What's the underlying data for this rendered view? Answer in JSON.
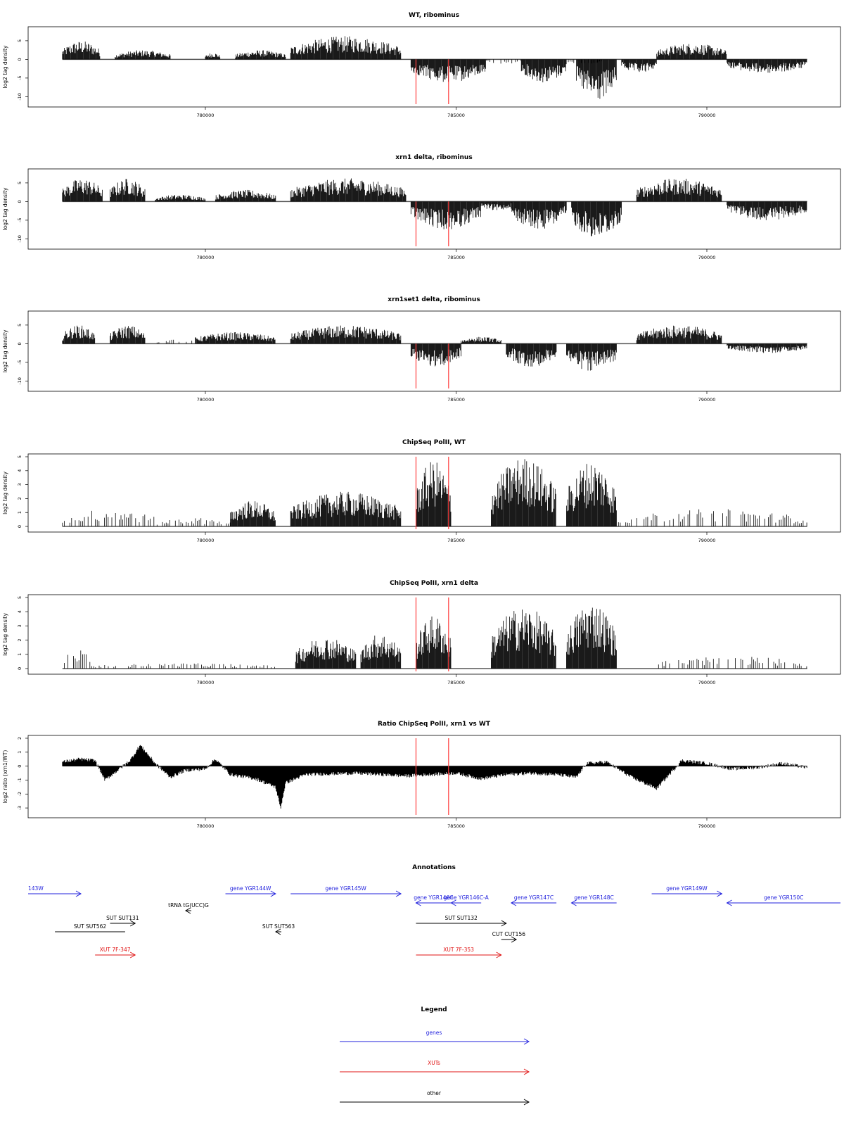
{
  "colors": {
    "gene": "#2222dd",
    "xut": "#e01414",
    "other": "#000000",
    "marker": "#ff3c3c",
    "bars": "#000000"
  },
  "x_range": [
    777000,
    792300
  ],
  "marker_positions": [
    784200,
    784850
  ],
  "panels": [
    {
      "title": "WT, ribominus",
      "ylabel": "log2 tag density",
      "yticks": [
        "5",
        "0",
        "-5",
        "-10"
      ],
      "chart_data": {
        "type": "bar",
        "xlim": [
          777000,
          792300
        ],
        "ylim": [
          -12,
          8
        ],
        "xticks": [
          780000,
          785000,
          790000
        ],
        "xtick_labels": [
          "780000",
          "785000",
          "790000"
        ],
        "segments": [
          {
            "x": [
              777150,
              777900
            ],
            "y": 4,
            "sign": "+"
          },
          {
            "x": [
              778200,
              779300
            ],
            "y": 2,
            "sign": "+"
          },
          {
            "x": [
              780000,
              780300
            ],
            "y": 1.5,
            "sign": "+"
          },
          {
            "x": [
              780600,
              781600
            ],
            "y": 2,
            "sign": "+"
          },
          {
            "x": [
              781700,
              783900
            ],
            "y": 5,
            "sign": "+"
          },
          {
            "x": [
              784100,
              785600
            ],
            "y": -5,
            "sign": "-"
          },
          {
            "x": [
              785600,
              786300
            ],
            "y": -1,
            "sign": "-"
          },
          {
            "x": [
              786300,
              787200
            ],
            "y": -5,
            "sign": "-"
          },
          {
            "x": [
              787200,
              787900
            ],
            "y": -1,
            "sign": "-"
          },
          {
            "x": [
              787400,
              788200
            ],
            "y": -9,
            "sign": "-"
          },
          {
            "x": [
              788300,
              789000
            ],
            "y": -3,
            "sign": "-"
          },
          {
            "x": [
              789000,
              790400
            ],
            "y": 3.5,
            "sign": "+"
          },
          {
            "x": [
              790400,
              792000
            ],
            "y": -3,
            "sign": "-"
          }
        ]
      }
    },
    {
      "title": "xrn1 delta, ribominus",
      "ylabel": "log2 tag density",
      "yticks": [
        "5",
        "0",
        "-5",
        "-10"
      ],
      "chart_data": {
        "type": "bar",
        "xlim": [
          777000,
          792300
        ],
        "ylim": [
          -12,
          8
        ],
        "xticks": [
          780000,
          785000,
          790000
        ],
        "xtick_labels": [
          "780000",
          "785000",
          "790000"
        ],
        "segments": [
          {
            "x": [
              777150,
              777950
            ],
            "y": 5,
            "sign": "+"
          },
          {
            "x": [
              778100,
              778800
            ],
            "y": 5,
            "sign": "+"
          },
          {
            "x": [
              779000,
              780000
            ],
            "y": 1.5,
            "sign": "+"
          },
          {
            "x": [
              780200,
              781400
            ],
            "y": 2.5,
            "sign": "+"
          },
          {
            "x": [
              781700,
              784000
            ],
            "y": 5,
            "sign": "+"
          },
          {
            "x": [
              784100,
              785500
            ],
            "y": -6,
            "sign": "-"
          },
          {
            "x": [
              785500,
              786100
            ],
            "y": -2,
            "sign": "-"
          },
          {
            "x": [
              786100,
              787200
            ],
            "y": -6,
            "sign": "-"
          },
          {
            "x": [
              787300,
              788300
            ],
            "y": -8,
            "sign": "-"
          },
          {
            "x": [
              788600,
              790300
            ],
            "y": 5,
            "sign": "+"
          },
          {
            "x": [
              790400,
              792000
            ],
            "y": -4,
            "sign": "-"
          }
        ]
      }
    },
    {
      "title": "xrn1set1 delta, ribominus",
      "ylabel": "log2 tag density",
      "yticks": [
        "5",
        "0",
        "-5",
        "-10"
      ],
      "chart_data": {
        "type": "bar",
        "xlim": [
          777000,
          792300
        ],
        "ylim": [
          -12,
          8
        ],
        "xticks": [
          780000,
          785000,
          790000
        ],
        "xtick_labels": [
          "780000",
          "785000",
          "790000"
        ],
        "segments": [
          {
            "x": [
              777150,
              777800
            ],
            "y": 4,
            "sign": "+"
          },
          {
            "x": [
              778100,
              778800
            ],
            "y": 4,
            "sign": "+"
          },
          {
            "x": [
              779000,
              779800
            ],
            "y": 1,
            "sign": "+"
          },
          {
            "x": [
              779800,
              781400
            ],
            "y": 2.5,
            "sign": "+"
          },
          {
            "x": [
              781700,
              783900
            ],
            "y": 4,
            "sign": "+"
          },
          {
            "x": [
              784100,
              785100
            ],
            "y": -5,
            "sign": "-"
          },
          {
            "x": [
              785100,
              785900
            ],
            "y": 1.5,
            "sign": "+"
          },
          {
            "x": [
              786000,
              787000
            ],
            "y": -5,
            "sign": "-"
          },
          {
            "x": [
              787200,
              788200
            ],
            "y": -6,
            "sign": "-"
          },
          {
            "x": [
              788600,
              790300
            ],
            "y": 4,
            "sign": "+"
          },
          {
            "x": [
              790400,
              792000
            ],
            "y": -2,
            "sign": "-"
          }
        ]
      }
    },
    {
      "title": "ChipSeq PolII, WT",
      "ylabel": "log2 tag density",
      "yticks": [
        "5",
        "4",
        "3",
        "2",
        "1",
        "0"
      ],
      "chart_data": {
        "type": "bar",
        "xlim": [
          777000,
          792300
        ],
        "ylim": [
          -0.2,
          5
        ],
        "xticks": [
          780000,
          785000,
          790000
        ],
        "xtick_labels": [
          "780000",
          "785000",
          "790000"
        ],
        "segments": [
          {
            "x": [
              777150,
              779000
            ],
            "y": 1,
            "sign": "+"
          },
          {
            "x": [
              779000,
              780500
            ],
            "y": 0.5,
            "sign": "+"
          },
          {
            "x": [
              780500,
              781400
            ],
            "y": 1.5,
            "sign": "+"
          },
          {
            "x": [
              781700,
              783900
            ],
            "y": 2,
            "sign": "+"
          },
          {
            "x": [
              784200,
              784900
            ],
            "y": 3.8,
            "sign": "+"
          },
          {
            "x": [
              785700,
              787000
            ],
            "y": 4,
            "sign": "+"
          },
          {
            "x": [
              787200,
              788200
            ],
            "y": 3.8,
            "sign": "+"
          },
          {
            "x": [
              788200,
              792000
            ],
            "y": 1,
            "sign": "+"
          }
        ]
      }
    },
    {
      "title": "ChipSeq PolII, xrn1 delta",
      "ylabel": "log2 tag density",
      "yticks": [
        "5",
        "4",
        "3",
        "2",
        "1",
        "0"
      ],
      "chart_data": {
        "type": "bar",
        "xlim": [
          777000,
          792300
        ],
        "ylim": [
          -0.2,
          5
        ],
        "xticks": [
          780000,
          785000,
          790000
        ],
        "xtick_labels": [
          "780000",
          "785000",
          "790000"
        ],
        "segments": [
          {
            "x": [
              777150,
              777700
            ],
            "y": 1.2,
            "sign": "+"
          },
          {
            "x": [
              777700,
              781400
            ],
            "y": 0.3,
            "sign": "+"
          },
          {
            "x": [
              781800,
              783000
            ],
            "y": 1.8,
            "sign": "+"
          },
          {
            "x": [
              783100,
              783900
            ],
            "y": 2,
            "sign": "+"
          },
          {
            "x": [
              784200,
              784900
            ],
            "y": 3,
            "sign": "+"
          },
          {
            "x": [
              785700,
              787000
            ],
            "y": 3.5,
            "sign": "+"
          },
          {
            "x": [
              787200,
              788200
            ],
            "y": 3.8,
            "sign": "+"
          },
          {
            "x": [
              789000,
              792000
            ],
            "y": 0.7,
            "sign": "+"
          }
        ]
      }
    },
    {
      "title": "Ratio ChipSeq PolII, xrn1 vs WT",
      "ylabel": "log2 ratio (xrn1/WT)",
      "yticks": [
        "2",
        "1",
        "0",
        "-1",
        "-2",
        "-3"
      ],
      "chart_data": {
        "type": "area",
        "xlim": [
          777000,
          792300
        ],
        "ylim": [
          -3.5,
          2
        ],
        "xticks": [
          780000,
          785000,
          790000
        ],
        "xtick_labels": [
          "780000",
          "785000",
          "790000"
        ],
        "x": [
          777150,
          777500,
          777800,
          778000,
          778500,
          778700,
          779000,
          779300,
          779600,
          780000,
          780200,
          780500,
          781000,
          781400,
          781500,
          781600,
          782000,
          783000,
          784000,
          784500,
          785000,
          785500,
          786000,
          786500,
          787000,
          787400,
          787600,
          788000,
          788500,
          789000,
          789500,
          790000,
          790500,
          791000,
          791500,
          792000
        ],
        "y": [
          0.3,
          0.5,
          0.4,
          -1.0,
          0.4,
          1.5,
          0.2,
          -0.8,
          -0.3,
          -0.2,
          0.5,
          -0.6,
          -0.9,
          -1.5,
          -3.0,
          -1.2,
          -0.6,
          -0.5,
          -0.7,
          -0.6,
          -0.5,
          -0.9,
          -0.6,
          -0.5,
          -0.6,
          -0.8,
          0.2,
          0.3,
          -0.8,
          -1.6,
          0.4,
          0.2,
          -0.2,
          -0.1,
          0.2,
          -0.1
        ]
      }
    }
  ],
  "annotations": {
    "title": "Annotations",
    "features": [
      {
        "label": "143W",
        "type": "gene",
        "x1": 777000,
        "x2": 778100,
        "dir": "+",
        "row": 0
      },
      {
        "label": "gene YGR144W",
        "type": "gene",
        "x1": 780400,
        "x2": 781400,
        "dir": "+",
        "row": 0
      },
      {
        "label": "gene YGR145W",
        "type": "gene",
        "x1": 781700,
        "x2": 783900,
        "dir": "+",
        "row": 0
      },
      {
        "label": "gene YGR146C",
        "type": "gene",
        "x1": 784200,
        "x2": 784900,
        "dir": "-",
        "row": 1
      },
      {
        "label": "gene YGR146C-A",
        "type": "gene",
        "x1": 784900,
        "x2": 785500,
        "dir": "-",
        "row": 1
      },
      {
        "label": "gene YGR147C",
        "type": "gene",
        "x1": 786100,
        "x2": 787000,
        "dir": "-",
        "row": 1
      },
      {
        "label": "gene YGR148C",
        "type": "gene",
        "x1": 787300,
        "x2": 788200,
        "dir": "-",
        "row": 1
      },
      {
        "label": "gene YGR149W",
        "type": "gene",
        "x1": 788900,
        "x2": 790300,
        "dir": "+",
        "row": 0
      },
      {
        "label": "gene YGR150C",
        "type": "gene",
        "x1": 790400,
        "x2": 792300,
        "dir": "-",
        "row": 1
      },
      {
        "label": "tRNA tG(UCC)G",
        "type": "other",
        "x1": 779400,
        "x2": 779500,
        "dir": "-",
        "row": 2
      },
      {
        "label": "SUT SUT562",
        "type": "other",
        "x1": 777000,
        "x2": 778400,
        "dir": "none",
        "row": 4
      },
      {
        "label": "SUT SUT131",
        "type": "other",
        "x1": 778100,
        "x2": 778600,
        "dir": "+",
        "row": 3
      },
      {
        "label": "SUT SUT563",
        "type": "other",
        "x1": 781400,
        "x2": 781500,
        "dir": "-",
        "row": 4
      },
      {
        "label": "SUT SUT132",
        "type": "other",
        "x1": 784200,
        "x2": 786000,
        "dir": "+",
        "row": 3
      },
      {
        "label": "CUT CUT156",
        "type": "other",
        "x1": 785900,
        "x2": 786200,
        "dir": "+",
        "row": 5
      },
      {
        "label": "XUT 7F-347",
        "type": "xut",
        "x1": 777800,
        "x2": 778600,
        "dir": "+",
        "row": 6
      },
      {
        "label": "XUT 7F-353",
        "type": "xut",
        "x1": 784200,
        "x2": 785900,
        "dir": "+",
        "row": 6
      }
    ]
  },
  "legend": {
    "title": "Legend",
    "items": [
      {
        "label": "genes",
        "type": "gene"
      },
      {
        "label": "XUTs",
        "type": "xut"
      },
      {
        "label": "other",
        "type": "other"
      }
    ]
  }
}
